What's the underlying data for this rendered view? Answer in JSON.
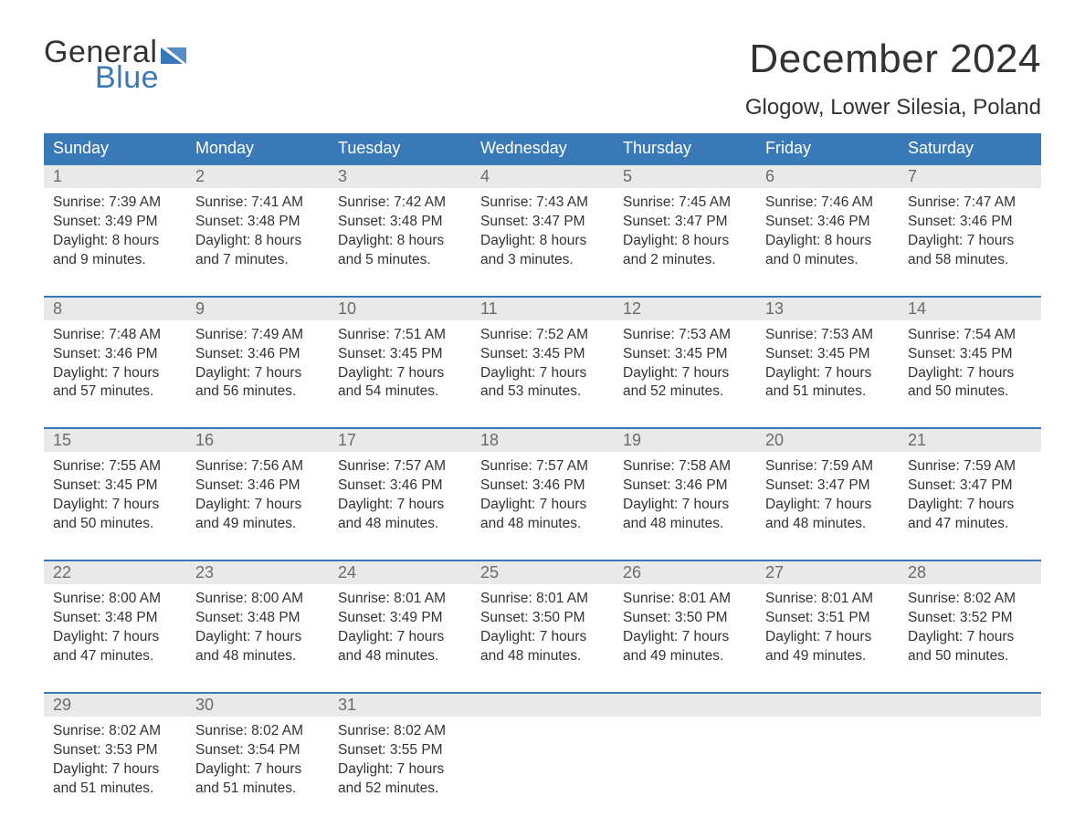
{
  "logo": {
    "word1": "General",
    "word2": "Blue",
    "flag_color": "#3a79b7",
    "text_dark": "#333333"
  },
  "title": "December 2024",
  "location": "Glogow, Lower Silesia, Poland",
  "colors": {
    "header_bg": "#3a79b7",
    "header_text": "#ffffff",
    "separator": "#3a79b7",
    "daynum_bg": "#e9e9e9",
    "daynum_text": "#6b6b6b",
    "body_text": "#333333",
    "page_bg": "#ffffff"
  },
  "typography": {
    "title_fontsize": 44,
    "location_fontsize": 24,
    "dow_fontsize": 18,
    "daynum_fontsize": 18,
    "body_fontsize": 15.5
  },
  "days_of_week": [
    "Sunday",
    "Monday",
    "Tuesday",
    "Wednesday",
    "Thursday",
    "Friday",
    "Saturday"
  ],
  "weeks": [
    [
      {
        "n": "1",
        "sunrise": "Sunrise: 7:39 AM",
        "sunset": "Sunset: 3:49 PM",
        "d1": "Daylight: 8 hours",
        "d2": "and 9 minutes."
      },
      {
        "n": "2",
        "sunrise": "Sunrise: 7:41 AM",
        "sunset": "Sunset: 3:48 PM",
        "d1": "Daylight: 8 hours",
        "d2": "and 7 minutes."
      },
      {
        "n": "3",
        "sunrise": "Sunrise: 7:42 AM",
        "sunset": "Sunset: 3:48 PM",
        "d1": "Daylight: 8 hours",
        "d2": "and 5 minutes."
      },
      {
        "n": "4",
        "sunrise": "Sunrise: 7:43 AM",
        "sunset": "Sunset: 3:47 PM",
        "d1": "Daylight: 8 hours",
        "d2": "and 3 minutes."
      },
      {
        "n": "5",
        "sunrise": "Sunrise: 7:45 AM",
        "sunset": "Sunset: 3:47 PM",
        "d1": "Daylight: 8 hours",
        "d2": "and 2 minutes."
      },
      {
        "n": "6",
        "sunrise": "Sunrise: 7:46 AM",
        "sunset": "Sunset: 3:46 PM",
        "d1": "Daylight: 8 hours",
        "d2": "and 0 minutes."
      },
      {
        "n": "7",
        "sunrise": "Sunrise: 7:47 AM",
        "sunset": "Sunset: 3:46 PM",
        "d1": "Daylight: 7 hours",
        "d2": "and 58 minutes."
      }
    ],
    [
      {
        "n": "8",
        "sunrise": "Sunrise: 7:48 AM",
        "sunset": "Sunset: 3:46 PM",
        "d1": "Daylight: 7 hours",
        "d2": "and 57 minutes."
      },
      {
        "n": "9",
        "sunrise": "Sunrise: 7:49 AM",
        "sunset": "Sunset: 3:46 PM",
        "d1": "Daylight: 7 hours",
        "d2": "and 56 minutes."
      },
      {
        "n": "10",
        "sunrise": "Sunrise: 7:51 AM",
        "sunset": "Sunset: 3:45 PM",
        "d1": "Daylight: 7 hours",
        "d2": "and 54 minutes."
      },
      {
        "n": "11",
        "sunrise": "Sunrise: 7:52 AM",
        "sunset": "Sunset: 3:45 PM",
        "d1": "Daylight: 7 hours",
        "d2": "and 53 minutes."
      },
      {
        "n": "12",
        "sunrise": "Sunrise: 7:53 AM",
        "sunset": "Sunset: 3:45 PM",
        "d1": "Daylight: 7 hours",
        "d2": "and 52 minutes."
      },
      {
        "n": "13",
        "sunrise": "Sunrise: 7:53 AM",
        "sunset": "Sunset: 3:45 PM",
        "d1": "Daylight: 7 hours",
        "d2": "and 51 minutes."
      },
      {
        "n": "14",
        "sunrise": "Sunrise: 7:54 AM",
        "sunset": "Sunset: 3:45 PM",
        "d1": "Daylight: 7 hours",
        "d2": "and 50 minutes."
      }
    ],
    [
      {
        "n": "15",
        "sunrise": "Sunrise: 7:55 AM",
        "sunset": "Sunset: 3:45 PM",
        "d1": "Daylight: 7 hours",
        "d2": "and 50 minutes."
      },
      {
        "n": "16",
        "sunrise": "Sunrise: 7:56 AM",
        "sunset": "Sunset: 3:46 PM",
        "d1": "Daylight: 7 hours",
        "d2": "and 49 minutes."
      },
      {
        "n": "17",
        "sunrise": "Sunrise: 7:57 AM",
        "sunset": "Sunset: 3:46 PM",
        "d1": "Daylight: 7 hours",
        "d2": "and 48 minutes."
      },
      {
        "n": "18",
        "sunrise": "Sunrise: 7:57 AM",
        "sunset": "Sunset: 3:46 PM",
        "d1": "Daylight: 7 hours",
        "d2": "and 48 minutes."
      },
      {
        "n": "19",
        "sunrise": "Sunrise: 7:58 AM",
        "sunset": "Sunset: 3:46 PM",
        "d1": "Daylight: 7 hours",
        "d2": "and 48 minutes."
      },
      {
        "n": "20",
        "sunrise": "Sunrise: 7:59 AM",
        "sunset": "Sunset: 3:47 PM",
        "d1": "Daylight: 7 hours",
        "d2": "and 48 minutes."
      },
      {
        "n": "21",
        "sunrise": "Sunrise: 7:59 AM",
        "sunset": "Sunset: 3:47 PM",
        "d1": "Daylight: 7 hours",
        "d2": "and 47 minutes."
      }
    ],
    [
      {
        "n": "22",
        "sunrise": "Sunrise: 8:00 AM",
        "sunset": "Sunset: 3:48 PM",
        "d1": "Daylight: 7 hours",
        "d2": "and 47 minutes."
      },
      {
        "n": "23",
        "sunrise": "Sunrise: 8:00 AM",
        "sunset": "Sunset: 3:48 PM",
        "d1": "Daylight: 7 hours",
        "d2": "and 48 minutes."
      },
      {
        "n": "24",
        "sunrise": "Sunrise: 8:01 AM",
        "sunset": "Sunset: 3:49 PM",
        "d1": "Daylight: 7 hours",
        "d2": "and 48 minutes."
      },
      {
        "n": "25",
        "sunrise": "Sunrise: 8:01 AM",
        "sunset": "Sunset: 3:50 PM",
        "d1": "Daylight: 7 hours",
        "d2": "and 48 minutes."
      },
      {
        "n": "26",
        "sunrise": "Sunrise: 8:01 AM",
        "sunset": "Sunset: 3:50 PM",
        "d1": "Daylight: 7 hours",
        "d2": "and 49 minutes."
      },
      {
        "n": "27",
        "sunrise": "Sunrise: 8:01 AM",
        "sunset": "Sunset: 3:51 PM",
        "d1": "Daylight: 7 hours",
        "d2": "and 49 minutes."
      },
      {
        "n": "28",
        "sunrise": "Sunrise: 8:02 AM",
        "sunset": "Sunset: 3:52 PM",
        "d1": "Daylight: 7 hours",
        "d2": "and 50 minutes."
      }
    ],
    [
      {
        "n": "29",
        "sunrise": "Sunrise: 8:02 AM",
        "sunset": "Sunset: 3:53 PM",
        "d1": "Daylight: 7 hours",
        "d2": "and 51 minutes."
      },
      {
        "n": "30",
        "sunrise": "Sunrise: 8:02 AM",
        "sunset": "Sunset: 3:54 PM",
        "d1": "Daylight: 7 hours",
        "d2": "and 51 minutes."
      },
      {
        "n": "31",
        "sunrise": "Sunrise: 8:02 AM",
        "sunset": "Sunset: 3:55 PM",
        "d1": "Daylight: 7 hours",
        "d2": "and 52 minutes."
      },
      null,
      null,
      null,
      null
    ]
  ]
}
